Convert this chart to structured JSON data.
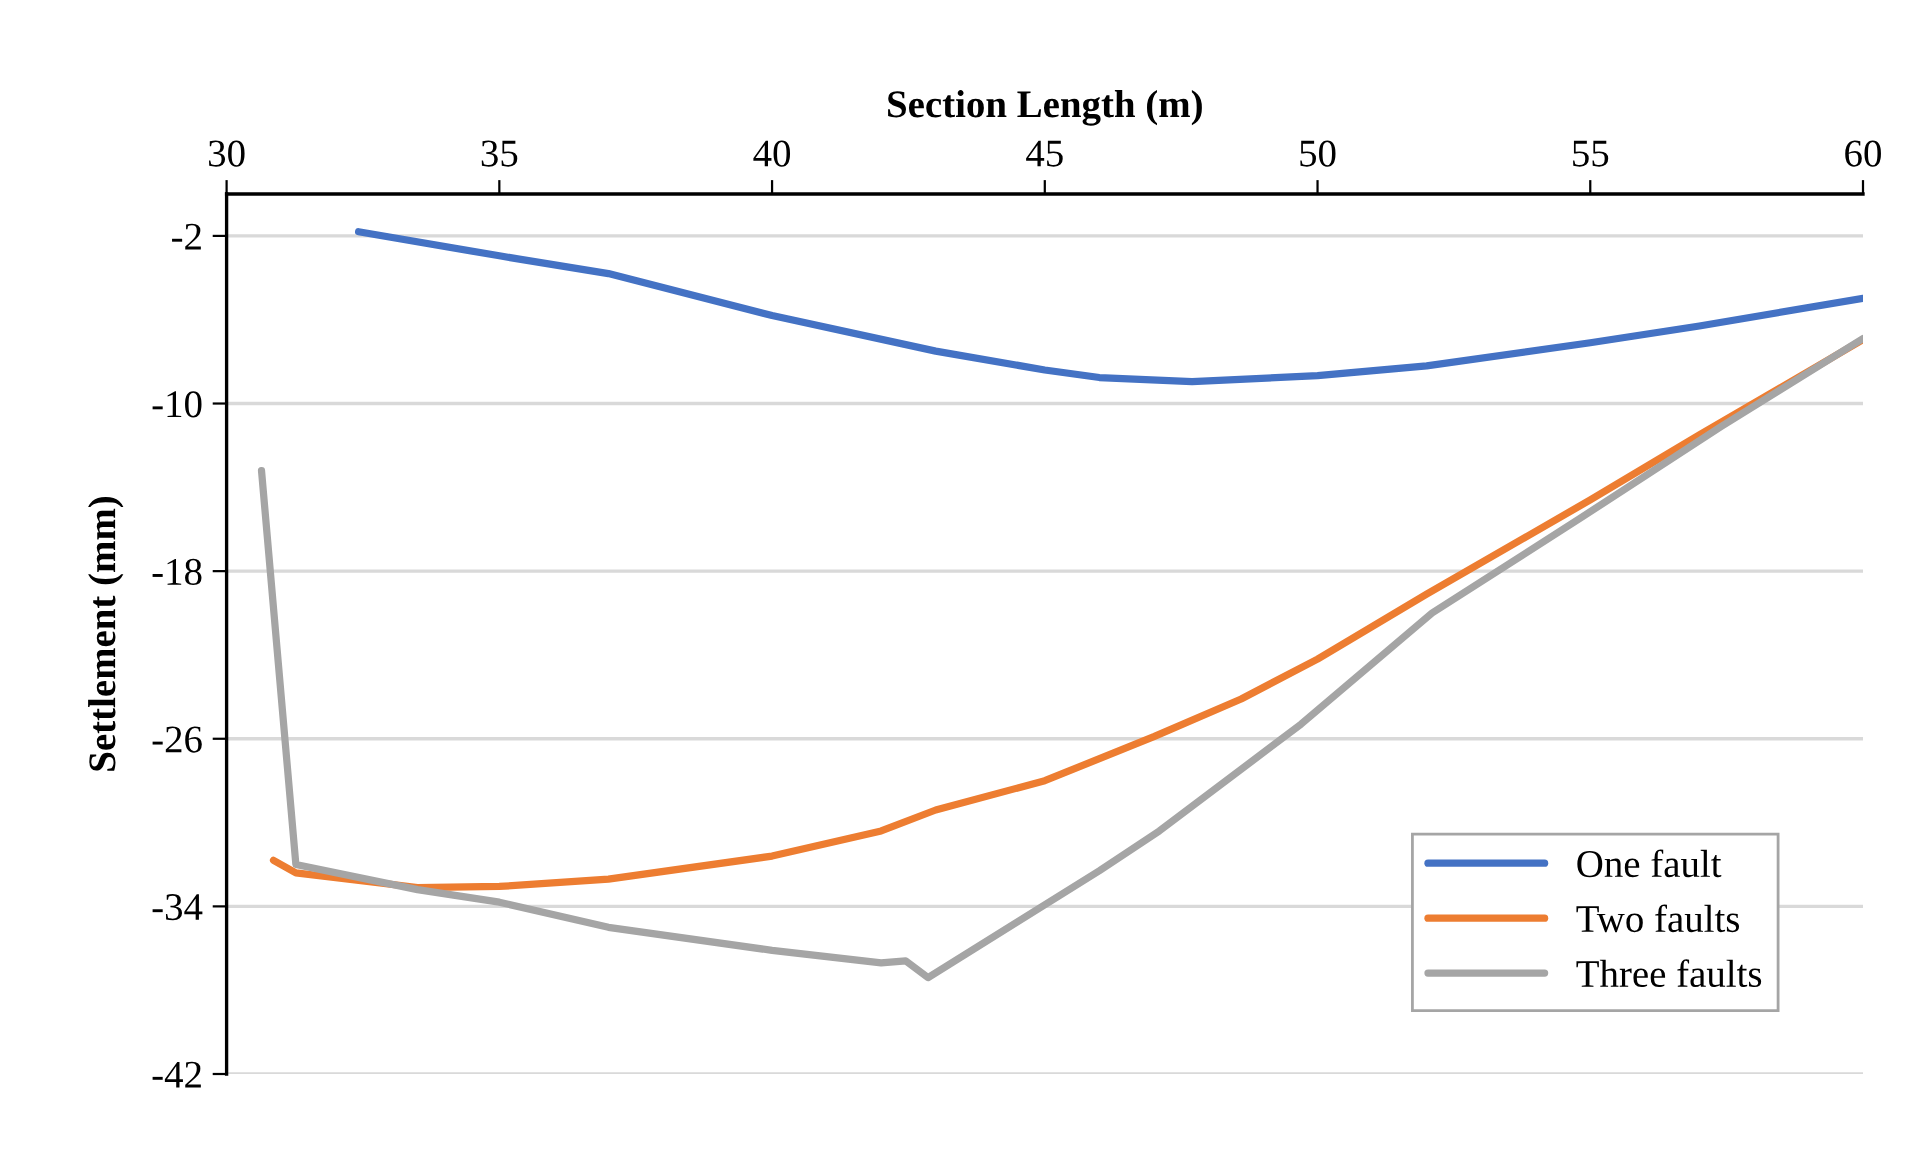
{
  "chart_data": {
    "type": "line",
    "xlabel": "Section Length (m)",
    "ylabel": "Settlement (mm)",
    "xlim": [
      30,
      60
    ],
    "xticks": [
      30,
      35,
      40,
      45,
      50,
      55,
      60
    ],
    "ylim": [
      -42,
      0
    ],
    "yticks": [
      -2,
      -10,
      -18,
      -26,
      -34,
      -42
    ],
    "grid": "y",
    "legend": "bottom right",
    "marker": "none",
    "line_style": "solid",
    "series": [
      {
        "name": "One fault",
        "color": "#4472c4",
        "x": [
          32.42,
          35,
          37,
          40,
          43,
          45,
          46,
          47.7,
          50,
          52,
          55,
          57,
          60
        ],
        "values": [
          -1.8,
          -2.95,
          -3.8,
          -5.8,
          -7.5,
          -8.4,
          -8.76,
          -8.95,
          -8.67,
          -8.2,
          -7.1,
          -6.3,
          -4.98
        ]
      },
      {
        "name": "Two faults",
        "color": "#ed7d31",
        "x": [
          30.86,
          31.27,
          33.5,
          35,
          37,
          40,
          42,
          43,
          45,
          47,
          48.6,
          50,
          52,
          55,
          57,
          60
        ],
        "values": [
          -31.8,
          -32.4,
          -33.1,
          -33.05,
          -32.7,
          -31.6,
          -30.4,
          -29.4,
          -28.0,
          -25.9,
          -24.1,
          -22.2,
          -19.1,
          -14.6,
          -11.5,
          -6.95
        ]
      },
      {
        "name": "Three faults",
        "color": "#a5a5a5",
        "x": [
          30.64,
          31.27,
          33.5,
          35,
          37,
          40,
          42,
          42.45,
          42.86,
          46,
          47.1,
          49.7,
          52.1,
          54.8,
          57.4,
          60
        ],
        "values": [
          -13.2,
          -32.0,
          -33.2,
          -33.8,
          -35.0,
          -36.1,
          -36.7,
          -36.6,
          -37.4,
          -32.3,
          -30.4,
          -25.3,
          -20.0,
          -15.5,
          -11.1,
          -6.9
        ]
      }
    ]
  }
}
